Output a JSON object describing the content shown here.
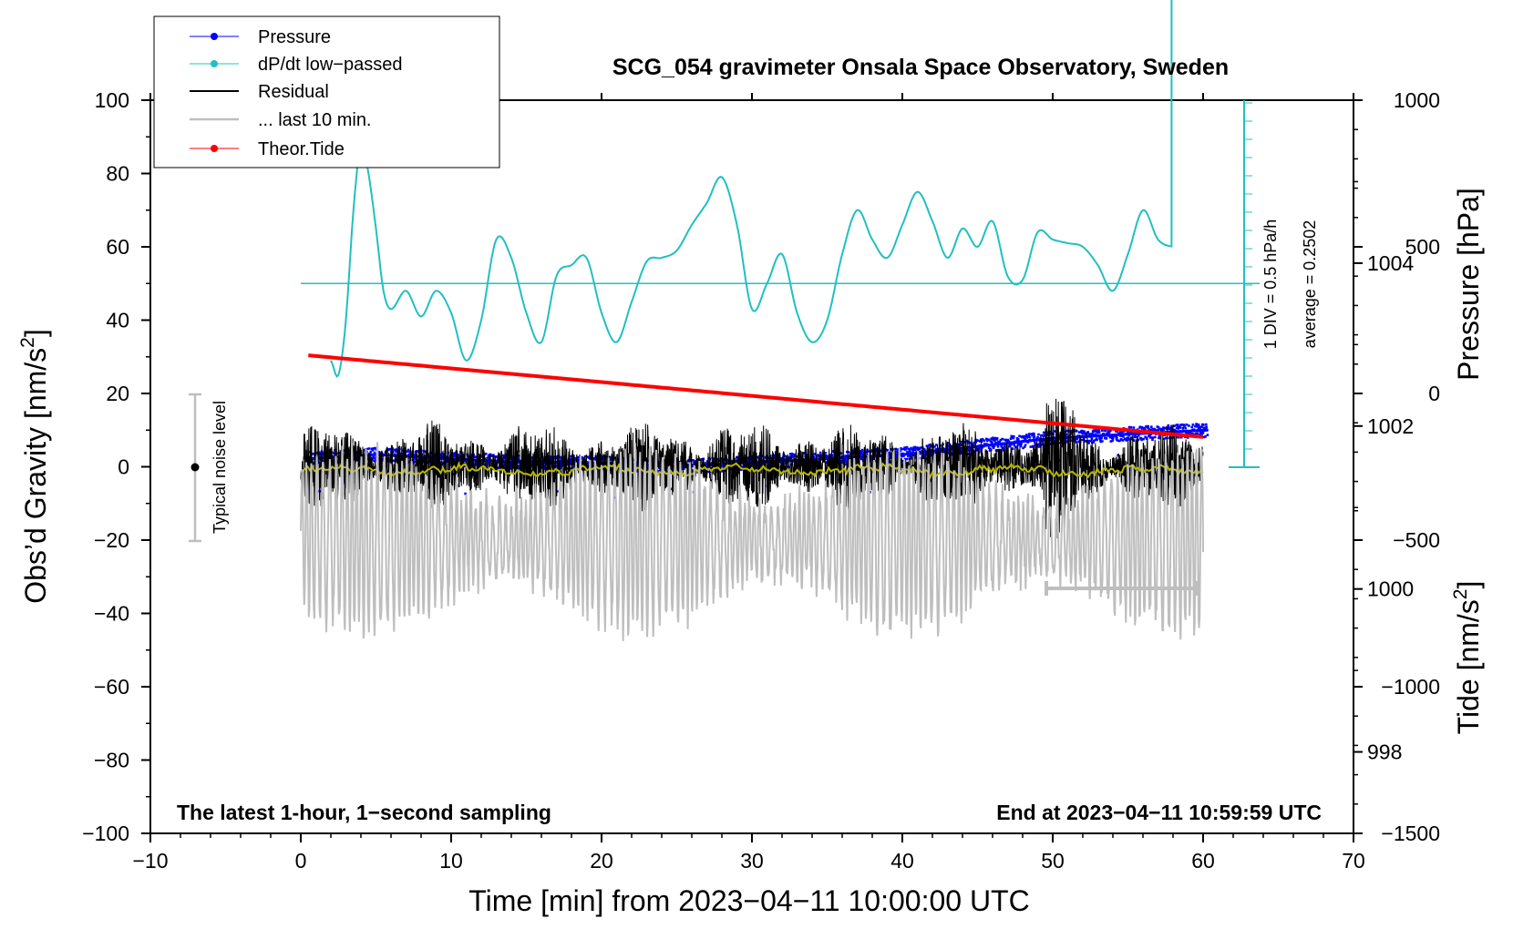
{
  "chart_data": {
    "type": "line",
    "title": "SCG_054 gravimeter Onsala Space Observatory, Sweden",
    "xlabel": "Time [min] from 2023−04−11 10:00:00 UTC",
    "ylabel_left": "Obs’d Gravity [nm/s",
    "ylabel_left_sup": "2",
    "ylabel_left_suffix": "]",
    "ylabel_right_pressure": "Pressure [hPa]",
    "ylabel_right_tide": "Tide [nm/s",
    "ylabel_right_tide_sup": "2",
    "ylabel_right_tide_suffix": "]",
    "xlim": [
      -10,
      70
    ],
    "ylim": [
      -100,
      100
    ],
    "pressure_lim": [
      997.0,
      1006.0
    ],
    "tide_lim": [
      -1500,
      1000
    ],
    "x_ticks": [
      "−10",
      "0",
      "10",
      "20",
      "30",
      "40",
      "50",
      "60",
      "70"
    ],
    "y_ticks": [
      "100",
      "80",
      "60",
      "40",
      "20",
      "0",
      "−20",
      "−40",
      "−60",
      "−80",
      "−100"
    ],
    "pressure_ticks": [
      "1004",
      "1002",
      "1000",
      "998"
    ],
    "tide_ticks": [
      "1000",
      "500",
      "0",
      "−500",
      "−1000",
      "−1500"
    ],
    "legend": {
      "pressure": "Pressure",
      "dpdt": "dP/dt low−passed",
      "residual": "Residual",
      "last10": "... last 10 min.",
      "tide": "Theor.Tide"
    },
    "annotations": {
      "noise": "Typical noise level",
      "div": "1 DIV = 0.5 hPa/h",
      "average": "average = 0.2502",
      "left_note": "The latest 1-hour, 1−second sampling",
      "right_note": "End at 2023−04−11 10:59:59 UTC"
    },
    "noise_range": [
      -20,
      20
    ],
    "series": [
      {
        "name": "Pressure",
        "color": "#0000ff",
        "x": [
          0.5,
          5,
          10,
          15,
          20,
          25,
          30,
          35,
          40,
          45,
          50,
          55,
          60.3
        ],
        "values": [
          1001.6,
          1001.65,
          1001.6,
          1001.55,
          1001.55,
          1001.5,
          1001.55,
          1001.6,
          1001.65,
          1001.75,
          1001.85,
          1001.9,
          1001.95
        ],
        "axis": "pressure"
      },
      {
        "name": "dP/dt low-passed",
        "color": "#20c0c0",
        "x": [
          2,
          2.5,
          3,
          3.5,
          4,
          4.5,
          5,
          5.5,
          6,
          7,
          8,
          9,
          10,
          11,
          12,
          13,
          14,
          15,
          16,
          17,
          18,
          19,
          20,
          21,
          22,
          23,
          24,
          25,
          26,
          27,
          28,
          29,
          30,
          31,
          32,
          33,
          34,
          35,
          36,
          37,
          38,
          39,
          40,
          41,
          42,
          43,
          44,
          45,
          46,
          47,
          48,
          49,
          50,
          51,
          52,
          53,
          54,
          55,
          56,
          57,
          58
        ],
        "values": [
          29,
          25,
          40,
          70,
          88,
          80,
          65,
          48,
          43,
          48,
          41,
          48,
          42,
          29,
          40,
          62,
          57,
          42,
          34,
          52,
          55,
          57,
          42,
          34,
          45,
          56,
          57,
          59,
          66,
          72,
          79,
          66,
          43,
          50,
          58,
          42,
          34,
          40,
          58,
          70,
          62,
          57,
          66,
          75,
          67,
          57,
          65,
          60,
          67,
          52,
          51,
          64,
          62,
          61,
          60,
          55,
          48,
          58,
          70,
          62,
          60
        ],
        "axis": "gravity"
      },
      {
        "name": "Residual",
        "color": "#000000",
        "x": [
          0,
          10,
          20,
          30,
          40,
          50,
          60
        ],
        "values": [
          0,
          0,
          0,
          0,
          0,
          0,
          0
        ],
        "axis": "gravity"
      },
      {
        "name": "Theor.Tide",
        "color": "#ff0000",
        "x": [
          0.5,
          60.3
        ],
        "values": [
          130,
          -150
        ],
        "axis": "tide"
      },
      {
        "name": "... last 10 min.",
        "color": "#bebebe",
        "x": [
          0,
          60
        ],
        "values": [
          -500,
          -500
        ],
        "axis": "tide"
      }
    ],
    "dpdt_reference_level": 50,
    "residual_scale_bar_minutes": [
      50,
      60
    ]
  }
}
